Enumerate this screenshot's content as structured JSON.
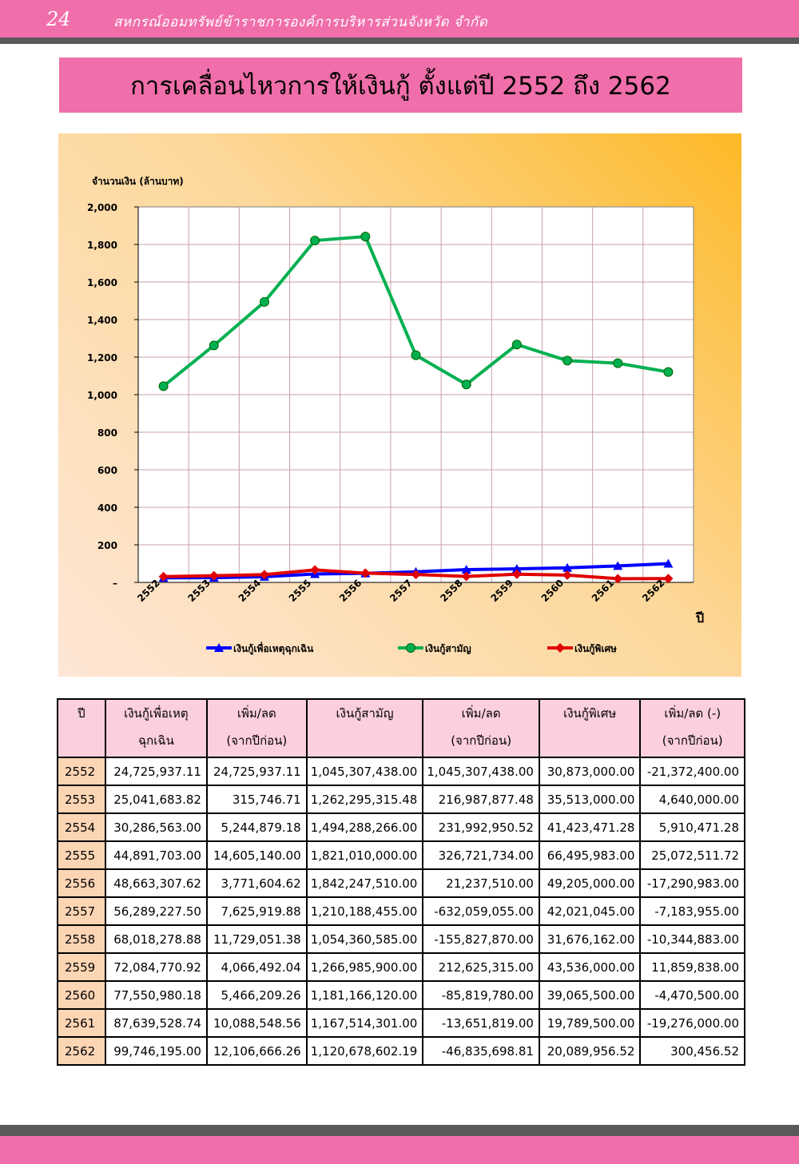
{
  "header": {
    "page_number": "24",
    "org_name": "สหกรณ์ออมทรัพย์ข้าราชการองค์การบริหารส่วนจังหวัด จำกัด"
  },
  "title": "การเคลื่อนไหวการให้เงินกู้ ตั้งแต่ปี 2552 ถึง 2562",
  "chart_data": {
    "type": "line",
    "ylabel": "จำนวนเงิน (ล้านบาท)",
    "xlabel": "ปี",
    "ylim": [
      0,
      2000
    ],
    "yticks": [
      "–",
      "200",
      "400",
      "600",
      "800",
      "1,000",
      "1,200",
      "1,400",
      "1,600",
      "1,800",
      "2,000"
    ],
    "grid": true,
    "legend_position": "bottom",
    "categories": [
      "2552",
      "2553",
      "2554",
      "2555",
      "2556",
      "2557",
      "2558",
      "2559",
      "2560",
      "2561",
      "2562"
    ],
    "series": [
      {
        "name": "เงินกู้เพื่อเหตุฉุกเฉิน",
        "color": "#0000ff",
        "marker": "triangle",
        "values": [
          24.73,
          25.04,
          30.29,
          44.89,
          48.66,
          56.29,
          68.02,
          72.08,
          77.55,
          87.64,
          99.75
        ]
      },
      {
        "name": "เงินกู้สามัญ",
        "color": "#00b050",
        "marker": "circle",
        "values": [
          1045.31,
          1262.3,
          1494.29,
          1821.01,
          1842.25,
          1210.19,
          1054.36,
          1266.99,
          1181.17,
          1167.51,
          1120.68
        ]
      },
      {
        "name": "เงินกู้พิเศษ",
        "color": "#e00000",
        "marker": "diamond",
        "values": [
          30.87,
          35.51,
          41.42,
          66.5,
          49.21,
          42.02,
          31.68,
          43.54,
          39.07,
          19.79,
          20.09
        ]
      }
    ]
  },
  "table": {
    "headers": [
      {
        "line1": "ปี",
        "line2": ""
      },
      {
        "line1": "เงินกู้เพื่อเหตุ",
        "line2": "ฉุกเฉิน"
      },
      {
        "line1": "เพิ่ม/ลด",
        "line2": "(จากปีก่อน)"
      },
      {
        "line1": "เงินกู้สามัญ",
        "line2": ""
      },
      {
        "line1": "เพิ่ม/ลด",
        "line2": "(จากปีก่อน)"
      },
      {
        "line1": "เงินกู้พิเศษ",
        "line2": ""
      },
      {
        "line1": "เพิ่ม/ลด (-)",
        "line2": "(จากปีก่อน)"
      }
    ],
    "rows": [
      [
        "2552",
        "24,725,937.11",
        "24,725,937.11",
        "1,045,307,438.00",
        "1,045,307,438.00",
        "30,873,000.00",
        "-21,372,400.00"
      ],
      [
        "2553",
        "25,041,683.82",
        "315,746.71",
        "1,262,295,315.48",
        "216,987,877.48",
        "35,513,000.00",
        "4,640,000.00"
      ],
      [
        "2554",
        "30,286,563.00",
        "5,244,879.18",
        "1,494,288,266.00",
        "231,992,950.52",
        "41,423,471.28",
        "5,910,471.28"
      ],
      [
        "2555",
        "44,891,703.00",
        "14,605,140.00",
        "1,821,010,000.00",
        "326,721,734.00",
        "66,495,983.00",
        "25,072,511.72"
      ],
      [
        "2556",
        "48,663,307.62",
        "3,771,604.62",
        "1,842,247,510.00",
        "21,237,510.00",
        "49,205,000.00",
        "-17,290,983.00"
      ],
      [
        "2557",
        "56,289,227.50",
        "7,625,919.88",
        "1,210,188,455.00",
        "-632,059,055.00",
        "42,021,045.00",
        "-7,183,955.00"
      ],
      [
        "2558",
        "68,018,278.88",
        "11,729,051.38",
        "1,054,360,585.00",
        "-155,827,870.00",
        "31,676,162.00",
        "-10,344,883.00"
      ],
      [
        "2559",
        "72,084,770.92",
        "4,066,492.04",
        "1,266,985,900.00",
        "212,625,315.00",
        "43,536,000.00",
        "11,859,838.00"
      ],
      [
        "2560",
        "77,550,980.18",
        "5,466,209.26",
        "1,181,166,120.00",
        "-85,819,780.00",
        "39,065,500.00",
        "-4,470,500.00"
      ],
      [
        "2561",
        "87,639,528.74",
        "10,088,548.56",
        "1,167,514,301.00",
        "-13,651,819.00",
        "19,789,500.00",
        "-19,276,000.00"
      ],
      [
        "2562",
        "99,746,195.00",
        "12,106,666.26",
        "1,120,678,602.19",
        "-46,835,698.81",
        "20,089,956.52",
        "300,456.52"
      ]
    ]
  }
}
